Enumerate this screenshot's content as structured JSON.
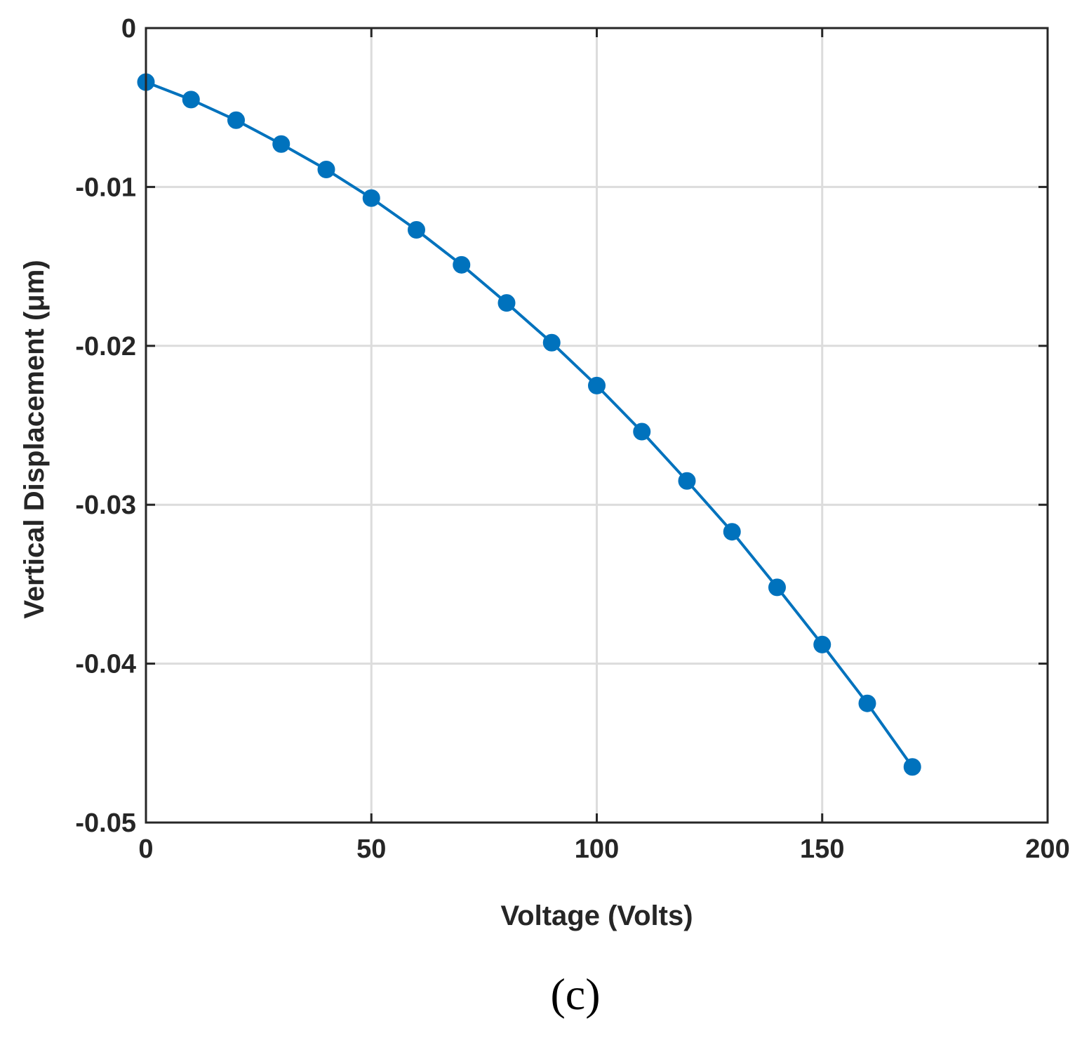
{
  "chart_data": {
    "type": "line",
    "title": "",
    "xlabel": "Voltage (Volts)",
    "ylabel": "Vertical Displacement (μm)",
    "xlim": [
      0,
      200
    ],
    "ylim": [
      -0.05,
      0
    ],
    "x_ticks": [
      0,
      50,
      100,
      150,
      200
    ],
    "y_ticks": [
      0,
      -0.01,
      -0.02,
      -0.03,
      -0.04,
      -0.05
    ],
    "x_tick_labels": [
      "0",
      "50",
      "100",
      "150",
      "200"
    ],
    "y_tick_labels": [
      "0",
      "-0.01",
      "-0.02",
      "-0.03",
      "-0.04",
      "-0.05"
    ],
    "grid": true,
    "series": [
      {
        "x": [
          0,
          10,
          20,
          30,
          40,
          50,
          60,
          70,
          80,
          90,
          100,
          110,
          120,
          130,
          140,
          150,
          160,
          170
        ],
        "y": [
          -0.0034,
          -0.0045,
          -0.0058,
          -0.0073,
          -0.0089,
          -0.0107,
          -0.0127,
          -0.0149,
          -0.0173,
          -0.0198,
          -0.0225,
          -0.0254,
          -0.0285,
          -0.0317,
          -0.0352,
          -0.0388,
          -0.0425,
          -0.0465
        ],
        "color": "#0072bd",
        "marker": "circle"
      }
    ]
  },
  "panel_label": "(c)"
}
